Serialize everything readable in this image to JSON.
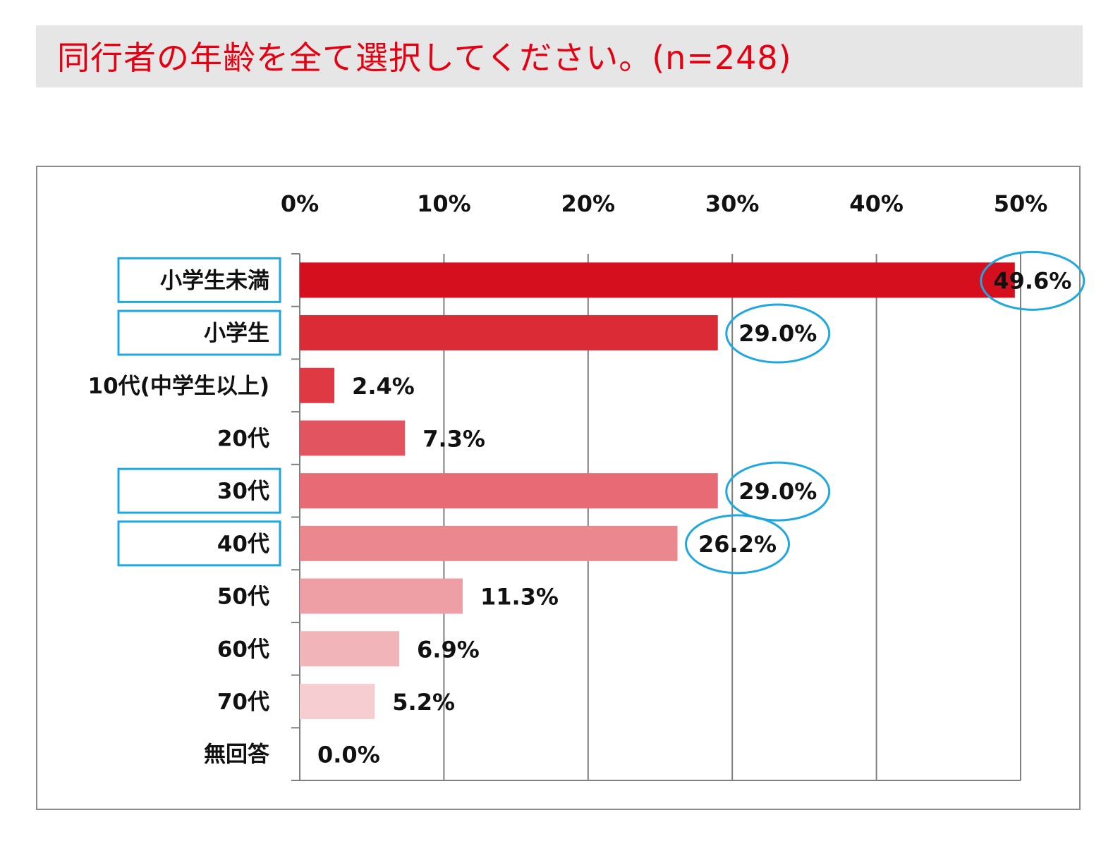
{
  "title": "同行者の年齢を全て選択してください。(n=248)",
  "colors": {
    "title_text": "#e50012",
    "title_bg": "#e6e6e6",
    "highlight": "#1ea7e1",
    "grid": "#7f7f7f"
  },
  "chart_data": {
    "type": "bar",
    "orientation": "horizontal",
    "title": "同行者の年齢を全て選択してください。(n=248)",
    "xlim": [
      0,
      50
    ],
    "x_ticks": [
      "0%",
      "10%",
      "20%",
      "30%",
      "40%",
      "50%"
    ],
    "x_axis_position": "top",
    "grid": true,
    "categories": [
      "小学生未満",
      "小学生",
      "10代(中学生以上)",
      "20代",
      "30代",
      "40代",
      "50代",
      "60代",
      "70代",
      "無回答"
    ],
    "values": [
      49.6,
      29.0,
      2.4,
      7.3,
      29.0,
      26.2,
      11.3,
      6.9,
      5.2,
      0.0
    ],
    "value_labels": [
      "49.6%",
      "29.0%",
      "2.4%",
      "7.3%",
      "29.0%",
      "26.2%",
      "11.3%",
      "6.9%",
      "5.2%",
      "0.0%"
    ],
    "bar_colors": [
      "#d50f1e",
      "#db2b36",
      "#df3a44",
      "#e25560",
      "#e76a74",
      "#eb878f",
      "#ee9fa5",
      "#f1b5b9",
      "#f6cdd0",
      "#f8dcde"
    ],
    "highlighted_categories": [
      "小学生未満",
      "小学生",
      "30代",
      "40代"
    ]
  }
}
